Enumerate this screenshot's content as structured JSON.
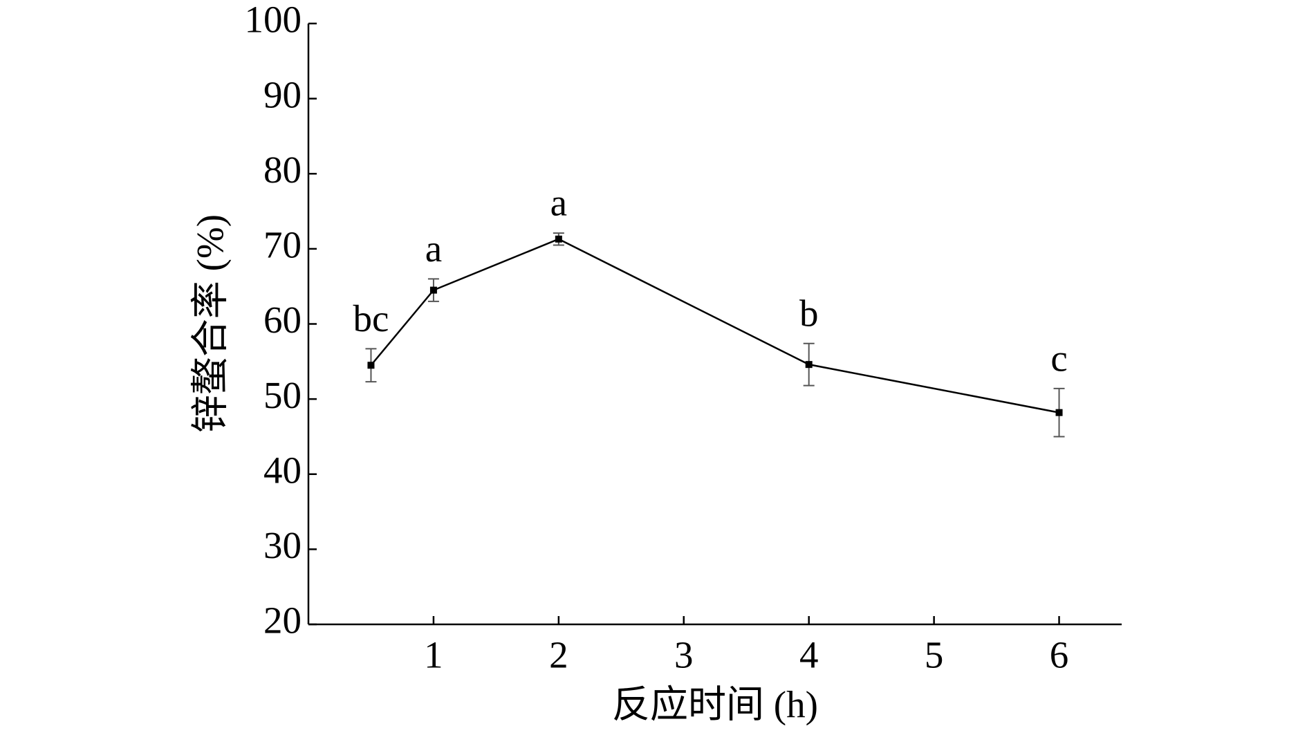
{
  "chart_data": {
    "type": "line",
    "x_label": "反应时间 (h)",
    "y_label": "锌螯合率 (%)",
    "x": [
      0.5,
      1,
      2,
      4,
      6
    ],
    "values": [
      54.5,
      64.5,
      71.3,
      54.6,
      48.2
    ],
    "errors": [
      2.2,
      1.5,
      0.8,
      2.8,
      3.2
    ],
    "point_labels": [
      "bc",
      "a",
      "a",
      "b",
      "c"
    ],
    "color": "#000000",
    "xlim": [
      0,
      6.5
    ],
    "xticks": [
      1,
      2,
      3,
      4,
      5,
      6
    ],
    "ylim": [
      20,
      100
    ],
    "yticks": [
      20,
      30,
      40,
      50,
      60,
      70,
      80,
      90,
      100
    ],
    "grid": false
  }
}
